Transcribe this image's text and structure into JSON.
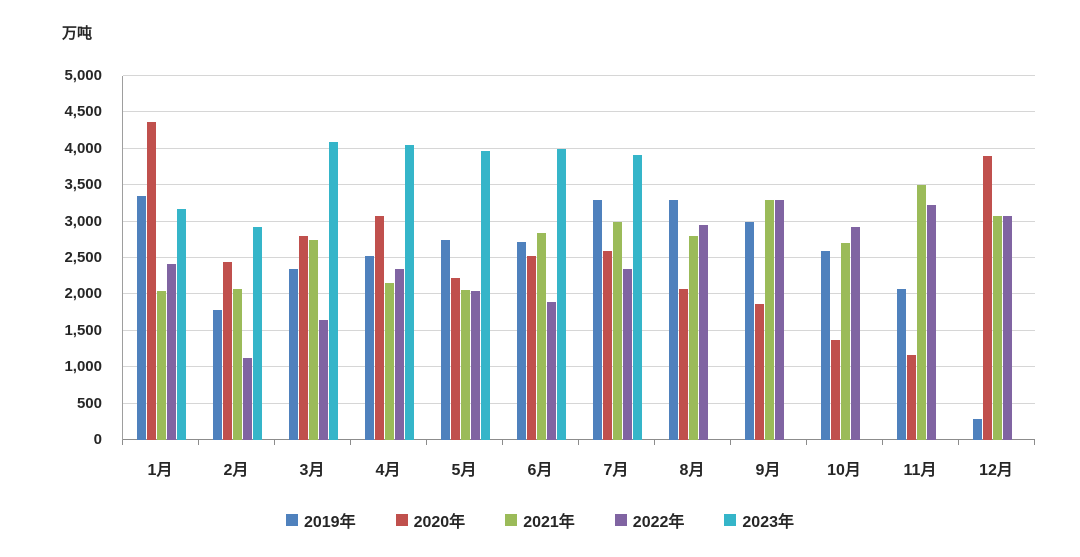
{
  "chart_data": {
    "type": "bar",
    "title": "",
    "ylabel": "万吨",
    "xlabel": "",
    "ylim": [
      0,
      5000
    ],
    "ytick_step": 500,
    "grid": true,
    "legend_position": "bottom",
    "categories": [
      "1月",
      "2月",
      "3月",
      "4月",
      "5月",
      "6月",
      "7月",
      "8月",
      "9月",
      "10月",
      "11月",
      "12月"
    ],
    "series": [
      {
        "name": "2019年",
        "color": "#4f81bd",
        "values": [
          3350,
          1780,
          2350,
          2530,
          2750,
          2720,
          3300,
          3300,
          3000,
          2600,
          2080,
          290
        ]
      },
      {
        "name": "2020年",
        "color": "#c0504d",
        "values": [
          4370,
          2450,
          2800,
          3080,
          2220,
          2530,
          2600,
          2070,
          1870,
          1370,
          1170,
          3900
        ]
      },
      {
        "name": "2021年",
        "color": "#9bbb59",
        "values": [
          2050,
          2080,
          2750,
          2160,
          2060,
          2840,
          3000,
          2800,
          3300,
          2700,
          3500,
          3080
        ]
      },
      {
        "name": "2022年",
        "color": "#8064a2",
        "values": [
          2420,
          1120,
          1650,
          2350,
          2050,
          1900,
          2350,
          2950,
          3300,
          2920,
          3230,
          3080
        ]
      },
      {
        "name": "2023年",
        "color": "#35b5c9",
        "values": [
          3170,
          2930,
          4100,
          4050,
          3970,
          4000,
          3920,
          null,
          null,
          null,
          null,
          null
        ]
      }
    ]
  }
}
